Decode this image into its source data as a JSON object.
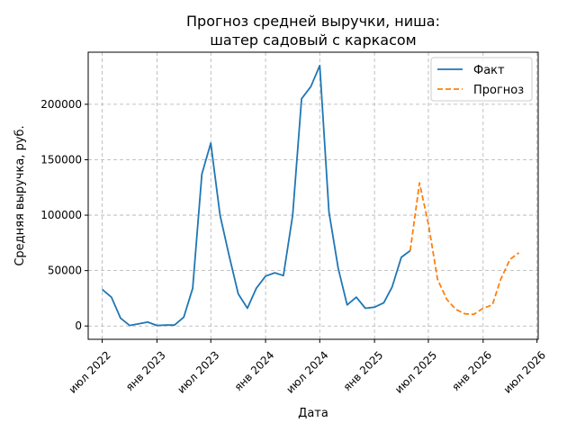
{
  "chart_data": {
    "type": "line",
    "title": [
      "Прогноз средней выручки, ниша:",
      "шатер садовый с каркасом"
    ],
    "xlabel": "Дата",
    "ylabel": "Средняя выручка, руб.",
    "grid": true,
    "legend_position": "top-right",
    "y_ticks": [
      0,
      50000,
      100000,
      150000,
      200000
    ],
    "ylim": [
      -12000,
      247000
    ],
    "xlim": [
      "2022-05-15",
      "2026-07-05"
    ],
    "x_ticks": [
      {
        "date": "2022-07-01",
        "label": "июл 2022"
      },
      {
        "date": "2023-01-01",
        "label": "янв 2023"
      },
      {
        "date": "2023-07-01",
        "label": "июл 2023"
      },
      {
        "date": "2024-01-01",
        "label": "янв 2024"
      },
      {
        "date": "2024-07-01",
        "label": "июл 2024"
      },
      {
        "date": "2025-01-01",
        "label": "янв 2025"
      },
      {
        "date": "2025-07-01",
        "label": "июл 2025"
      },
      {
        "date": "2026-01-01",
        "label": "янв 2026"
      },
      {
        "date": "2026-07-01",
        "label": "июл 2026"
      }
    ],
    "series": [
      {
        "name": "Факт",
        "color": "#1f77b4",
        "style": "solid",
        "x": [
          "2022-07-01",
          "2022-08-01",
          "2022-09-01",
          "2022-10-01",
          "2022-11-01",
          "2022-12-01",
          "2023-01-01",
          "2023-02-01",
          "2023-03-01",
          "2023-04-01",
          "2023-05-01",
          "2023-06-01",
          "2023-07-01",
          "2023-08-01",
          "2023-09-01",
          "2023-10-01",
          "2023-11-01",
          "2023-12-01",
          "2024-01-01",
          "2024-02-01",
          "2024-03-01",
          "2024-04-01",
          "2024-05-01",
          "2024-06-01",
          "2024-07-01",
          "2024-08-01",
          "2024-09-01",
          "2024-10-01",
          "2024-11-01",
          "2024-12-01",
          "2025-01-01",
          "2025-02-01",
          "2025-03-01",
          "2025-04-01",
          "2025-05-01"
        ],
        "y": [
          33000,
          26000,
          7000,
          500,
          2000,
          3500,
          500,
          800,
          800,
          8000,
          34000,
          137000,
          165000,
          100000,
          63000,
          29000,
          16000,
          34000,
          45000,
          48000,
          45500,
          100000,
          205000,
          216000,
          235000,
          103000,
          52000,
          19000,
          26000,
          16000,
          17000,
          21000,
          35000,
          62000,
          68000
        ]
      },
      {
        "name": "Прогноз",
        "color": "#ff7f0e",
        "style": "dashed",
        "x": [
          "2025-05-01",
          "2025-06-01",
          "2025-07-01",
          "2025-08-01",
          "2025-09-01",
          "2025-10-01",
          "2025-11-01",
          "2025-12-01",
          "2026-01-01",
          "2026-02-01",
          "2026-03-01",
          "2026-04-01",
          "2026-05-01"
        ],
        "y": [
          68000,
          129000,
          92000,
          42000,
          24000,
          15000,
          11000,
          10500,
          16000,
          19000,
          42000,
          60000,
          66000
        ]
      }
    ]
  }
}
